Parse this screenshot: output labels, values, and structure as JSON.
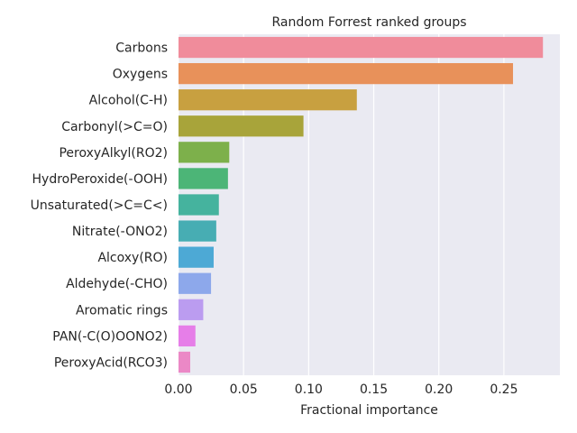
{
  "chart_data": {
    "type": "bar",
    "orientation": "horizontal",
    "title": "Random Forrest ranked groups",
    "xlabel": "Fractional importance",
    "ylabel": "",
    "xlim": [
      0,
      0.293
    ],
    "xticks": [
      "0.00",
      "0.05",
      "0.10",
      "0.15",
      "0.20",
      "0.25"
    ],
    "grid": true,
    "background": "#EAEAF2",
    "categories": [
      "Carbons",
      "Oxygens",
      "Alcohol(C-H)",
      "Carbonyl(>C=O)",
      "PeroxyAlkyl(RO2)",
      "HydroPeroxide(-OOH)",
      "Unsaturated(>C=C<)",
      "Nitrate(-ONO2)",
      "Alcoxy(RO)",
      "Aldehyde(-CHO)",
      "Aromatic rings",
      "PAN(-C(O)OONO2)",
      "PeroxyAcid(RCO3)"
    ],
    "values": [
      0.28,
      0.257,
      0.137,
      0.096,
      0.039,
      0.038,
      0.031,
      0.029,
      0.027,
      0.025,
      0.019,
      0.013,
      0.009
    ],
    "colors": [
      "#F08C9B",
      "#E8915A",
      "#C8A040",
      "#A8A43A",
      "#7DB04B",
      "#4CB577",
      "#45B39E",
      "#47ADB3",
      "#4DA9D5",
      "#8DA8EB",
      "#BB9CF0",
      "#E67EE8",
      "#EB88C6"
    ]
  }
}
